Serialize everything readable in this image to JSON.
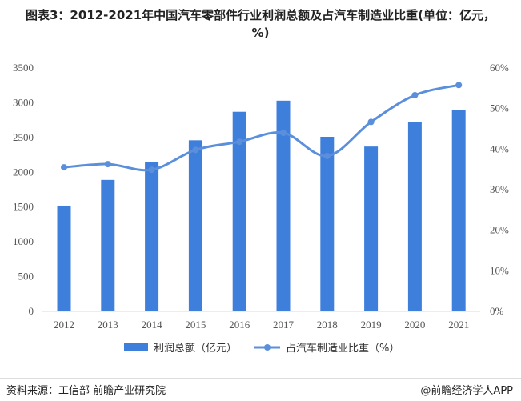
{
  "chart_data": {
    "type": "bar+line",
    "title": "图表3：2012-2021年中国汽车零部件行业利润总额及占汽车制造业比重(单位：亿元，%)",
    "categories": [
      "2012",
      "2013",
      "2014",
      "2015",
      "2016",
      "2017",
      "2018",
      "2019",
      "2020",
      "2021"
    ],
    "series": [
      {
        "name": "利润总额（亿元）",
        "type": "bar",
        "axis": "left",
        "color": "#3f7fdc",
        "values": [
          1520,
          1890,
          2150,
          2460,
          2870,
          3030,
          2510,
          2370,
          2720,
          2900
        ]
      },
      {
        "name": "占汽车制造业比重（%）",
        "type": "line",
        "axis": "right",
        "color": "#5b8fdc",
        "values": [
          35.5,
          36.3,
          34.9,
          39.8,
          41.8,
          44.0,
          38.3,
          46.7,
          53.3,
          55.8
        ]
      }
    ],
    "yleft": {
      "lim": [
        0,
        3500
      ],
      "ticks": [
        "0",
        "500",
        "1000",
        "1500",
        "2000",
        "2500",
        "3000",
        "3500"
      ]
    },
    "yright": {
      "lim": [
        0,
        60
      ],
      "ticks": [
        "0%",
        "10%",
        "20%",
        "30%",
        "40%",
        "50%",
        "60%"
      ]
    },
    "grid": false,
    "legend": "bottom"
  },
  "footer": {
    "source": "资料来源：工信部 前瞻产业研究院",
    "brand": "@前瞻经济学人APP"
  }
}
